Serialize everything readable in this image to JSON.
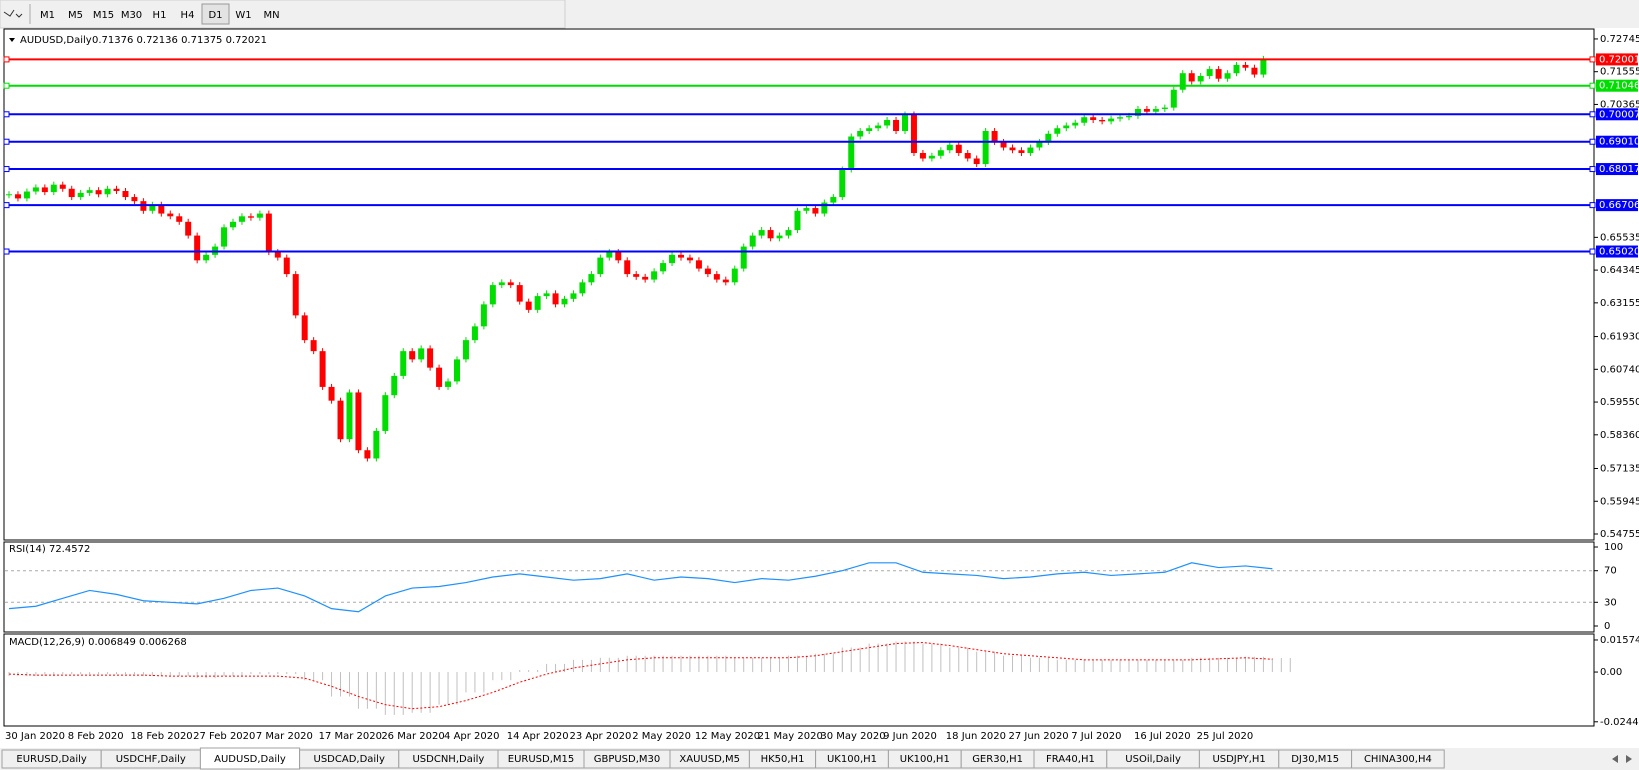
{
  "toolbar": {
    "timeframes": [
      "M1",
      "M5",
      "M15",
      "M30",
      "H1",
      "H4",
      "D1",
      "W1",
      "MN"
    ]
  },
  "main": {
    "symbol": "AUDUSD,Daily",
    "ohlc_text": "0.71376 0.72136 0.71375 0.72021",
    "ylim": [
      0.5461,
      0.7307
    ],
    "yticks": [
      0.72745,
      0.71555,
      0.70365,
      0.65535,
      0.64345,
      0.63155,
      {
        "value": 0.6193,
        "label": "0.61930"
      },
      {
        "value": 0.6074,
        "label": "0.60740"
      },
      {
        "value": 0.5955,
        "label": "0.59550"
      },
      {
        "value": 0.5836,
        "label": "0.58360"
      },
      0.57135,
      0.55945,
      0.54755
    ],
    "levels": [
      {
        "value": 0.72001,
        "color": "#ff0000"
      },
      {
        "value": 0.71046,
        "color": "#00dd00"
      },
      {
        "value": 0.70007,
        "color": "#0000ff"
      },
      {
        "value": 0.6901,
        "label": "0.69010",
        "color": "#0000ff"
      },
      {
        "value": 0.68017,
        "color": "#0000ff"
      },
      {
        "value": 0.66706,
        "color": "#0000ff"
      },
      {
        "value": 0.6502,
        "label": "0.65020",
        "color": "#0000ff"
      }
    ],
    "up_color": "#00dd00",
    "down_color": "#ff0000",
    "closes": [
      0.671,
      0.6695,
      0.672,
      0.6735,
      0.6718,
      0.6745,
      0.673,
      0.67,
      0.6715,
      0.6725,
      0.671,
      0.673,
      0.6722,
      0.67,
      0.6685,
      0.665,
      0.6672,
      0.664,
      0.663,
      0.661,
      0.656,
      0.647,
      0.649,
      0.652,
      0.659,
      0.661,
      0.663,
      0.6625,
      0.664,
      0.65,
      0.648,
      0.642,
      0.627,
      0.618,
      0.614,
      0.601,
      0.596,
      0.582,
      0.599,
      0.578,
      0.575,
      0.585,
      0.598,
      0.605,
      0.614,
      0.611,
      0.615,
      0.608,
      0.601,
      0.603,
      0.611,
      0.618,
      0.623,
      0.631,
      0.638,
      0.639,
      0.638,
      0.632,
      0.629,
      0.634,
      0.635,
      0.631,
      0.633,
      0.635,
      0.639,
      0.642,
      0.648,
      0.65,
      0.647,
      0.642,
      0.641,
      0.64,
      0.643,
      0.646,
      0.649,
      0.648,
      0.647,
      0.644,
      0.642,
      0.64,
      0.639,
      0.644,
      0.652,
      0.656,
      0.658,
      0.655,
      0.656,
      0.658,
      0.665,
      0.666,
      0.664,
      0.668,
      0.67,
      0.68,
      0.692,
      0.694,
      0.695,
      0.696,
      0.698,
      0.694,
      0.7,
      0.686,
      0.684,
      0.685,
      0.687,
      0.689,
      0.686,
      0.684,
      0.682,
      0.694,
      0.69,
      0.688,
      0.687,
      0.686,
      0.688,
      0.69,
      0.693,
      0.695,
      0.696,
      0.697,
      0.699,
      0.698,
      0.6975,
      0.6985,
      0.699,
      0.6995,
      0.702,
      0.701,
      0.702,
      0.7025,
      0.709,
      0.715,
      0.712,
      0.714,
      0.7165,
      0.713,
      0.715,
      0.718,
      0.717,
      0.7145,
      0.7202
    ],
    "dates": [
      "30 Jan 2020",
      "8 Feb 2020",
      "18 Feb 2020",
      "27 Feb 2020",
      "7 Mar 2020",
      "17 Mar 2020",
      "26 Mar 2020",
      "4 Apr 2020",
      "14 Apr 2020",
      "23 Apr 2020",
      "2 May 2020",
      "12 May 2020",
      "21 May 2020",
      "30 May 2020",
      "9 Jun 2020",
      "18 Jun 2020",
      "27 Jun 2020",
      "7 Jul 2020",
      "16 Jul 2020",
      "25 Jul 2020"
    ]
  },
  "rsi": {
    "title": "RSI(14) 72.4572",
    "ylim": [
      0,
      100
    ],
    "yticks": [
      100,
      70,
      30,
      0
    ],
    "levels": [
      70,
      30
    ],
    "color": "#1e90ff",
    "values": [
      22,
      25,
      35,
      45,
      40,
      32,
      30,
      28,
      35,
      45,
      48,
      38,
      22,
      18,
      38,
      48,
      50,
      55,
      62,
      66,
      62,
      58,
      60,
      66,
      58,
      62,
      60,
      55,
      60,
      58,
      63,
      70,
      80,
      80,
      68,
      66,
      64,
      60,
      62,
      66,
      68,
      64,
      66,
      68,
      80,
      74,
      76,
      72.4572
    ]
  },
  "macd": {
    "title": "MACD(12,26,9) 0.006849 0.006268",
    "ylim": [
      -0.0255,
      0.0172
    ],
    "yticks": [
      0.015741,
      {
        "value": 0,
        "label": "0.00"
      },
      -0.024417
    ],
    "hist_color": "#c0c0c0",
    "signal_color": "#ff0000",
    "histogram": [
      -0.002,
      -0.002,
      -0.001,
      -0.001,
      -0.001,
      -0.002,
      -0.002,
      -0.003,
      -0.002,
      -0.001,
      -0.001,
      -0.004,
      -0.012,
      -0.018,
      -0.021,
      -0.02,
      -0.016,
      -0.01,
      -0.004,
      0.001,
      0.004,
      0.006,
      0.007,
      0.008,
      0.008,
      0.008,
      0.008,
      0.007,
      0.007,
      0.008,
      0.009,
      0.012,
      0.014,
      0.015,
      0.014,
      0.012,
      0.01,
      0.008,
      0.007,
      0.006,
      0.006,
      0.006,
      0.006,
      0.006,
      0.007,
      0.007,
      0.0075,
      0.006849
    ],
    "signal": [
      -0.001,
      -0.0015,
      -0.0015,
      -0.0015,
      -0.0015,
      -0.0015,
      -0.002,
      -0.002,
      -0.002,
      -0.002,
      -0.002,
      -0.003,
      -0.007,
      -0.012,
      -0.016,
      -0.018,
      -0.017,
      -0.014,
      -0.01,
      -0.005,
      -0.001,
      0.002,
      0.004,
      0.006,
      0.007,
      0.007,
      0.007,
      0.007,
      0.007,
      0.007,
      0.008,
      0.01,
      0.012,
      0.014,
      0.0145,
      0.013,
      0.011,
      0.009,
      0.008,
      0.007,
      0.006,
      0.006,
      0.006,
      0.006,
      0.006,
      0.0065,
      0.007,
      0.006268
    ]
  },
  "tabs": [
    "EURUSD,Daily",
    "USDCHF,Daily",
    "AUDUSD,Daily",
    "USDCAD,Daily",
    "USDCNH,Daily",
    "EURUSD,M15",
    "GBPUSD,M30",
    "XAUUSD,M5",
    "HK50,H1",
    "UK100,H1",
    "UK100,H1",
    "GER30,H1",
    "FRA40,H1",
    "USOil,Daily",
    "USDJPY,H1",
    "DJ30,M15",
    "CHINA300,H4"
  ]
}
